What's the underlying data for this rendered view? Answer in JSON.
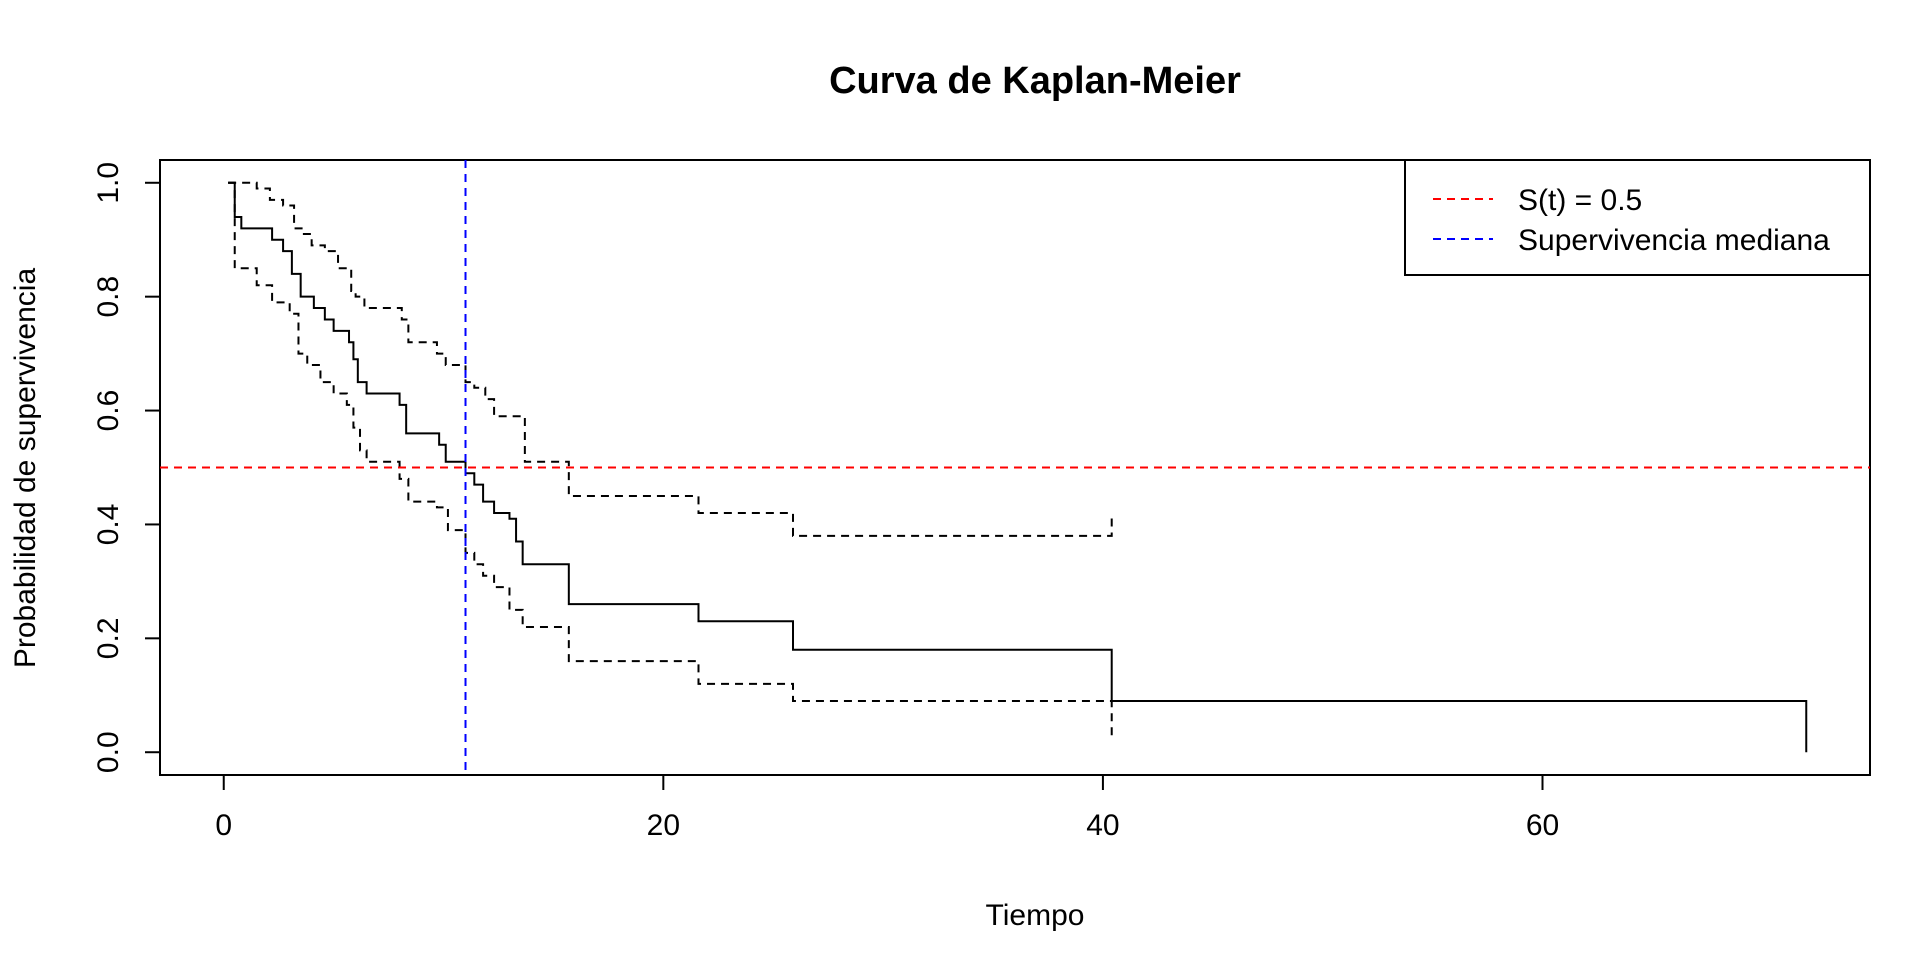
{
  "chart_data": {
    "type": "line",
    "title": "Curva de Kaplan-Meier",
    "xlabel": "Tiempo",
    "ylabel": "Probabilidad de supervivencia",
    "xlim": [
      -2.9,
      74.9
    ],
    "ylim": [
      -0.04,
      1.04
    ],
    "xticks": [
      0,
      20,
      40,
      60
    ],
    "xtick_labels": [
      "0",
      "20",
      "40",
      "60"
    ],
    "yticks": [
      0.0,
      0.2,
      0.4,
      0.6,
      0.8,
      1.0
    ],
    "ytick_labels": [
      "0.0",
      "0.2",
      "0.4",
      "0.6",
      "0.8",
      "1.0"
    ],
    "grid": false,
    "legend_position": "top-right",
    "colors": {
      "survival": "#000000",
      "confidence": "#000000",
      "reference_line": "#ff0000",
      "median_line": "#0000ff"
    },
    "series": [
      {
        "key": "survival",
        "style": "solid",
        "x": [
          0.2,
          0.5,
          0.8,
          1.5,
          2.2,
          2.7,
          3.1,
          3.5,
          4.1,
          4.6,
          5.0,
          5.2,
          5.7,
          5.9,
          6.1,
          6.5,
          8.0,
          8.3,
          9.8,
          10.1,
          11.0,
          11.4,
          11.8,
          12.3,
          13.0,
          13.3,
          13.6,
          15.7,
          21.6,
          25.9,
          40.4,
          72.0
        ],
        "y": [
          1.0,
          0.94,
          0.92,
          0.92,
          0.9,
          0.88,
          0.84,
          0.8,
          0.78,
          0.76,
          0.74,
          0.74,
          0.72,
          0.69,
          0.65,
          0.63,
          0.61,
          0.56,
          0.54,
          0.51,
          0.49,
          0.47,
          0.44,
          0.42,
          0.41,
          0.37,
          0.33,
          0.26,
          0.23,
          0.18,
          0.09,
          0.0
        ]
      },
      {
        "key": "upper_ci",
        "style": "dashed",
        "x": [
          0.2,
          1.5,
          2.1,
          2.7,
          3.2,
          3.6,
          4.0,
          4.6,
          5.2,
          5.8,
          6.0,
          6.4,
          8.1,
          8.4,
          9.7,
          10.1,
          11.0,
          11.4,
          11.9,
          12.3,
          13.0,
          13.7,
          15.7,
          21.6,
          25.9,
          40.4
        ],
        "y": [
          1.0,
          0.99,
          0.97,
          0.96,
          0.92,
          0.91,
          0.89,
          0.88,
          0.85,
          0.81,
          0.8,
          0.78,
          0.76,
          0.72,
          0.7,
          0.68,
          0.65,
          0.64,
          0.62,
          0.59,
          0.59,
          0.51,
          0.45,
          0.42,
          0.38,
          0.42
        ]
      },
      {
        "key": "lower_ci",
        "style": "dashed",
        "x": [
          0.2,
          0.5,
          1.5,
          2.2,
          3.0,
          3.4,
          3.8,
          4.4,
          5.0,
          5.6,
          5.9,
          6.2,
          6.5,
          8.0,
          8.4,
          9.7,
          10.2,
          11.0,
          11.4,
          11.8,
          12.3,
          13.0,
          13.6,
          15.7,
          21.6,
          25.9,
          40.4
        ],
        "y": [
          1.0,
          0.85,
          0.82,
          0.79,
          0.77,
          0.7,
          0.68,
          0.65,
          0.63,
          0.61,
          0.57,
          0.53,
          0.51,
          0.48,
          0.44,
          0.43,
          0.39,
          0.35,
          0.33,
          0.31,
          0.29,
          0.25,
          0.22,
          0.16,
          0.12,
          0.09,
          0.02
        ]
      }
    ],
    "reference_lines": [
      {
        "key": "reference_line",
        "orientation": "horizontal",
        "value": 0.5,
        "style": "dashed"
      },
      {
        "key": "median_line",
        "orientation": "vertical",
        "value": 11.0,
        "style": "dashed"
      }
    ],
    "legend": [
      {
        "label": "S(t) = 0.5",
        "color": "#ff0000",
        "style": "dashed"
      },
      {
        "label": "Supervivencia mediana",
        "color": "#0000ff",
        "style": "dashed"
      }
    ]
  }
}
